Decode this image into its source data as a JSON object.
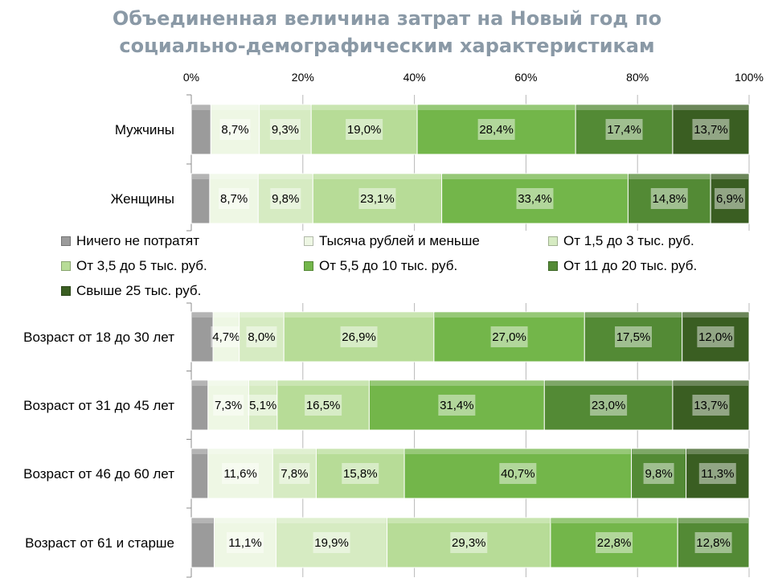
{
  "title_lines": [
    "Объединенная величина затрат на Новый год по",
    "социально-демографическим  характеристикам"
  ],
  "chart_data": {
    "type": "bar",
    "orientation": "horizontal-stacked-100",
    "xlim": [
      0,
      100
    ],
    "x_ticks": [
      "0%",
      "20%",
      "40%",
      "60%",
      "80%",
      "100%"
    ],
    "series": [
      {
        "name": "Ничего не потратят",
        "color": "#9b9b9b"
      },
      {
        "name": "Тысяча рублей и меньше",
        "color": "#eef7e4"
      },
      {
        "name": "От 1,5 до 3 тыс. руб.",
        "color": "#d6ebc2"
      },
      {
        "name": "От 3,5 до 5 тыс. руб.",
        "color": "#b7dc97"
      },
      {
        "name": "От 5,5 до 10 тыс. руб.",
        "color": "#73b64a"
      },
      {
        "name": "От 11 до 20 тыс. руб.",
        "color": "#538a35"
      },
      {
        "name": "Свыше 25 тыс. руб.",
        "color": "#3a5e22"
      }
    ],
    "panels": [
      {
        "rows": [
          {
            "category": "Мужчины",
            "values": [
              3.5,
              8.7,
              9.3,
              19.0,
              28.4,
              17.4,
              13.7
            ],
            "labels": [
              "",
              "8,7%",
              "9,3%",
              "19,0%",
              "28,4%",
              "17,4%",
              "13,7%"
            ]
          },
          {
            "category": "Женщины",
            "values": [
              3.3,
              8.7,
              9.8,
              23.1,
              33.4,
              14.8,
              6.9
            ],
            "labels": [
              "",
              "8,7%",
              "9,8%",
              "23,1%",
              "33,4%",
              "14,8%",
              "6,9%"
            ]
          }
        ]
      },
      {
        "rows": [
          {
            "category": "Возраст от 18 до 30 лет",
            "values": [
              3.9,
              4.7,
              8.0,
              26.9,
              27.0,
              17.5,
              12.0
            ],
            "labels": [
              "",
              "4,7%",
              "8,0%",
              "26,9%",
              "27,0%",
              "17,5%",
              "12,0%"
            ]
          },
          {
            "category": "Возраст от 31 до 45 лет",
            "values": [
              3.0,
              7.3,
              5.1,
              16.5,
              31.4,
              23.0,
              13.7
            ],
            "labels": [
              "",
              "7,3%",
              "5,1%",
              "16,5%",
              "31,4%",
              "23,0%",
              "13,7%"
            ]
          },
          {
            "category": "Возраст от 46 до 60 лет",
            "values": [
              3.0,
              11.6,
              7.8,
              15.8,
              40.7,
              9.8,
              11.3
            ],
            "labels": [
              "",
              "11,6%",
              "7,8%",
              "15,8%",
              "40,7%",
              "9,8%",
              "11,3%"
            ]
          },
          {
            "category": "Возраст от 61 и старше",
            "values": [
              4.1,
              11.1,
              19.9,
              29.3,
              22.8,
              12.8,
              0
            ],
            "labels": [
              "",
              "11,1%",
              "19,9%",
              "29,3%",
              "22,8%",
              "12,8%",
              ""
            ]
          }
        ]
      }
    ],
    "legend_position": "between-panels",
    "grid": "vertical"
  }
}
